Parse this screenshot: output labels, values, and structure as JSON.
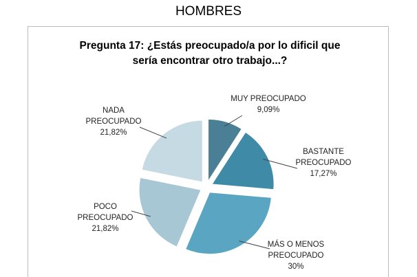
{
  "chart_data": {
    "type": "pie",
    "heading": "HOMBRES",
    "title": "Pregunta 17: ¿Estás preocupado/a por lo dificil que sería encontrar otro trabajo...?",
    "categories": [
      "MUY PREOCUPADO",
      "BASTANTE PREOCUPADO",
      "MÁS O MENOS PREOCUPADO",
      "POCO PREOCUPADO",
      "NADA PREOCUPADO"
    ],
    "values": [
      9.09,
      17.27,
      30,
      21.82,
      21.82
    ],
    "value_labels": [
      "9,09%",
      "17,27%",
      "30%",
      "21,82%",
      "21,82%"
    ],
    "colors": [
      "#4a7f95",
      "#3f8aa6",
      "#5aa6c2",
      "#a8c7d5",
      "#c6dae4"
    ]
  }
}
